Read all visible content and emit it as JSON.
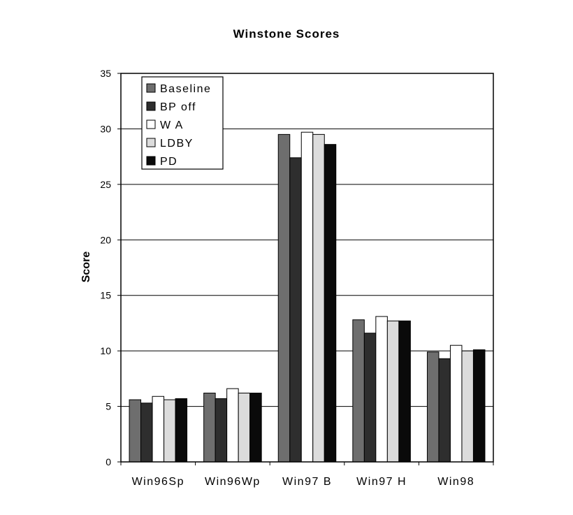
{
  "chart_data": {
    "type": "bar",
    "title": "Winstone Scores",
    "xlabel": "",
    "ylabel": "Score",
    "ylim": [
      0,
      35
    ],
    "yticks": [
      0,
      5,
      10,
      15,
      20,
      25,
      30,
      35
    ],
    "grid": true,
    "legend_position": "top-left",
    "categories": [
      "Win96Sp",
      "Win96Wp",
      "Win97 B",
      "Win97 H",
      "Win98"
    ],
    "series": [
      {
        "name": "Baseline",
        "color": "#6e6e6e",
        "values": [
          5.6,
          6.2,
          29.5,
          12.8,
          9.9
        ]
      },
      {
        "name": "BP off",
        "color": "#2e2e2e",
        "values": [
          5.3,
          5.7,
          27.4,
          11.6,
          9.3
        ]
      },
      {
        "name": "W A",
        "color": "#ffffff",
        "values": [
          5.9,
          6.6,
          29.7,
          13.1,
          10.5
        ]
      },
      {
        "name": "LDBY",
        "color": "#dcdcdc",
        "values": [
          5.6,
          6.2,
          29.5,
          12.7,
          10.0
        ]
      },
      {
        "name": "PD",
        "color": "#0a0a0a",
        "values": [
          5.7,
          6.2,
          28.6,
          12.7,
          10.1
        ]
      }
    ]
  }
}
